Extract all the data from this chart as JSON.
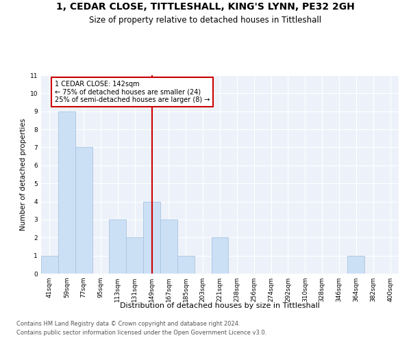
{
  "title1": "1, CEDAR CLOSE, TITTLESHALL, KING'S LYNN, PE32 2GH",
  "title2": "Size of property relative to detached houses in Tittleshall",
  "xlabel": "Distribution of detached houses by size in Tittleshall",
  "ylabel": "Number of detached properties",
  "categories": [
    "41sqm",
    "59sqm",
    "77sqm",
    "95sqm",
    "113sqm",
    "131sqm",
    "149sqm",
    "167sqm",
    "185sqm",
    "203sqm",
    "221sqm",
    "238sqm",
    "256sqm",
    "274sqm",
    "292sqm",
    "310sqm",
    "328sqm",
    "346sqm",
    "364sqm",
    "382sqm",
    "400sqm"
  ],
  "values": [
    1,
    9,
    7,
    0,
    3,
    2,
    4,
    3,
    1,
    0,
    2,
    0,
    0,
    0,
    0,
    0,
    0,
    0,
    1,
    0,
    0
  ],
  "bar_color": "#cce0f5",
  "bar_edge_color": "#a8c4e0",
  "vline_x_idx": 6,
  "vline_color": "#cc0000",
  "annotation_text": "1 CEDAR CLOSE: 142sqm\n← 75% of detached houses are smaller (24)\n25% of semi-detached houses are larger (8) →",
  "annotation_box_color": "#ffffff",
  "annotation_box_edge": "#cc0000",
  "ylim": [
    0,
    11
  ],
  "yticks": [
    0,
    1,
    2,
    3,
    4,
    5,
    6,
    7,
    8,
    9,
    10,
    11
  ],
  "background_color": "#edf2fa",
  "footer1": "Contains HM Land Registry data © Crown copyright and database right 2024.",
  "footer2": "Contains public sector information licensed under the Open Government Licence v3.0.",
  "title1_fontsize": 10,
  "title2_fontsize": 8.5,
  "xlabel_fontsize": 8,
  "ylabel_fontsize": 7.5,
  "tick_fontsize": 6.5,
  "annotation_fontsize": 7,
  "footer_fontsize": 6
}
